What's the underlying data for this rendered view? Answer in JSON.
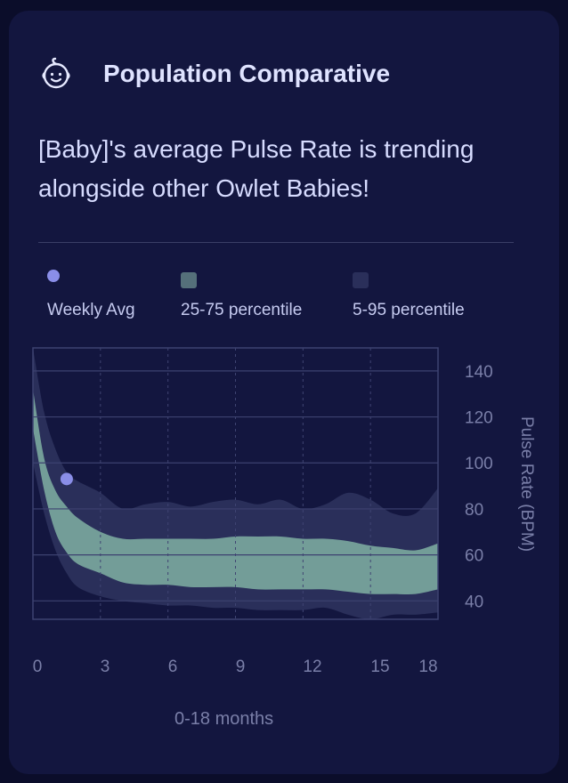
{
  "header": {
    "title": "Population Comparative",
    "icon": "baby-face-icon"
  },
  "message": "[Baby]'s average Pulse Rate is trending alongside other Owlet Babies!",
  "colors": {
    "background": "#0b0d2a",
    "card": "#13163f",
    "weekly_avg": "#8a8ee8",
    "p25_75": "#7aa79d",
    "p5_95": "#2a2f5a"
  },
  "legend": [
    {
      "label": "Weekly Avg",
      "swatch": "dot",
      "color": "#8a8ee8"
    },
    {
      "label": "25-75 percentile",
      "swatch": "square",
      "color": "#55707a"
    },
    {
      "label": "5-95 percentile",
      "swatch": "square",
      "color": "#2a2f5a"
    }
  ],
  "chart_data": {
    "type": "area",
    "xlabel": "0-18 months",
    "ylabel": "Pulse Rate (BPM)",
    "xlim": [
      0,
      18
    ],
    "ylim": [
      32,
      150
    ],
    "x_ticks": [
      0,
      3,
      6,
      9,
      12,
      15,
      18
    ],
    "y_ticks": [
      40,
      60,
      80,
      100,
      120,
      140
    ],
    "grid": true,
    "legend_position": "top",
    "series": [
      {
        "name": "5-95 percentile",
        "x": [
          0,
          0.5,
          1,
          1.5,
          2,
          3,
          4,
          5,
          6,
          7,
          8,
          9,
          10,
          11,
          12,
          13,
          14,
          15,
          16,
          17,
          18
        ],
        "lower": [
          100,
          78,
          62,
          52,
          46,
          42,
          40,
          39,
          38,
          38,
          37,
          37,
          36,
          36,
          36,
          37,
          34,
          32,
          34,
          34,
          35
        ],
        "upper": [
          150,
          122,
          106,
          96,
          92,
          87,
          80,
          82,
          83,
          81,
          83,
          84,
          82,
          84,
          80,
          82,
          87,
          84,
          78,
          78,
          89
        ]
      },
      {
        "name": "25-75 percentile",
        "x": [
          0,
          0.5,
          1,
          1.5,
          2,
          3,
          4,
          5,
          6,
          7,
          8,
          9,
          10,
          11,
          12,
          13,
          14,
          15,
          16,
          17,
          18
        ],
        "lower": [
          115,
          88,
          70,
          61,
          56,
          52,
          48,
          47,
          47,
          46,
          46,
          46,
          45,
          45,
          45,
          45,
          44,
          43,
          43,
          43,
          45
        ],
        "upper": [
          132,
          102,
          88,
          81,
          76,
          70,
          67,
          67,
          67,
          67,
          67,
          68,
          68,
          68,
          67,
          67,
          66,
          64,
          63,
          62,
          65
        ]
      },
      {
        "name": "Weekly Avg",
        "x": [
          1.5
        ],
        "y": [
          93
        ]
      }
    ]
  }
}
